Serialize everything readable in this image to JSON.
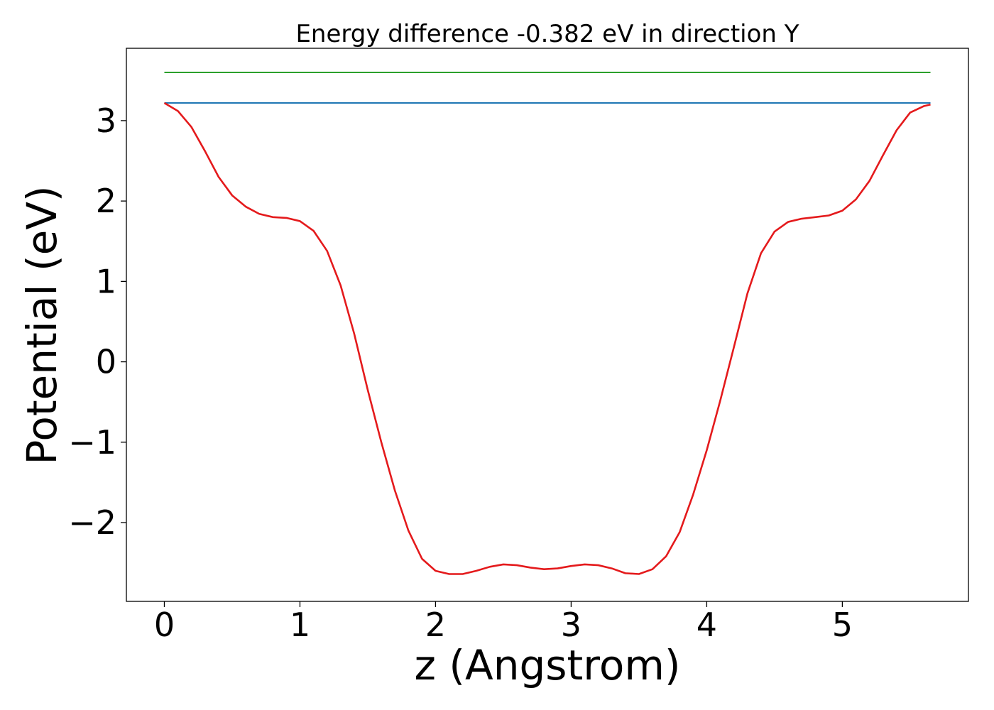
{
  "chart_data": {
    "type": "line",
    "title": "Energy difference -0.382 eV in direction Y",
    "xlabel": "z (Angstrom)",
    "ylabel": "Potential (eV)",
    "xlim": [
      -0.28,
      5.93
    ],
    "ylim": [
      -2.98,
      3.9
    ],
    "xticks": [
      0,
      1,
      2,
      3,
      4,
      5
    ],
    "xtick_labels": [
      "0",
      "1",
      "2",
      "3",
      "4",
      "5"
    ],
    "yticks": [
      -2,
      -1,
      0,
      1,
      2,
      3
    ],
    "ytick_labels": [
      "−2",
      "−1",
      "0",
      "1",
      "2",
      "3"
    ],
    "grid": false,
    "legend": "none",
    "series": [
      {
        "color": "#2ca02c",
        "x": [
          0,
          5.65
        ],
        "y": [
          3.6,
          3.6
        ]
      },
      {
        "color": "#1f77b4",
        "x": [
          0,
          5.65
        ],
        "y": [
          3.22,
          3.22
        ]
      },
      {
        "color": "#e41a1c",
        "x": [
          0,
          0.1,
          0.2,
          0.3,
          0.4,
          0.5,
          0.6,
          0.7,
          0.8,
          0.9,
          1.0,
          1.1,
          1.2,
          1.3,
          1.4,
          1.5,
          1.6,
          1.7,
          1.8,
          1.9,
          2.0,
          2.1,
          2.2,
          2.3,
          2.4,
          2.5,
          2.6,
          2.7,
          2.8,
          2.9,
          3.0,
          3.1,
          3.2,
          3.3,
          3.4,
          3.5,
          3.6,
          3.7,
          3.8,
          3.9,
          4.0,
          4.1,
          4.2,
          4.3,
          4.4,
          4.5,
          4.6,
          4.7,
          4.8,
          4.9,
          5.0,
          5.1,
          5.2,
          5.3,
          5.4,
          5.5,
          5.6,
          5.65
        ],
        "y": [
          3.22,
          3.12,
          2.92,
          2.62,
          2.3,
          2.07,
          1.93,
          1.84,
          1.8,
          1.79,
          1.75,
          1.63,
          1.38,
          0.95,
          0.35,
          -0.35,
          -1.0,
          -1.6,
          -2.1,
          -2.45,
          -2.6,
          -2.64,
          -2.64,
          -2.6,
          -2.55,
          -2.52,
          -2.53,
          -2.56,
          -2.58,
          -2.57,
          -2.54,
          -2.52,
          -2.53,
          -2.57,
          -2.63,
          -2.64,
          -2.58,
          -2.42,
          -2.12,
          -1.65,
          -1.1,
          -0.48,
          0.18,
          0.85,
          1.35,
          1.62,
          1.74,
          1.78,
          1.8,
          1.82,
          1.88,
          2.02,
          2.25,
          2.57,
          2.88,
          3.1,
          3.18,
          3.2
        ]
      }
    ]
  }
}
